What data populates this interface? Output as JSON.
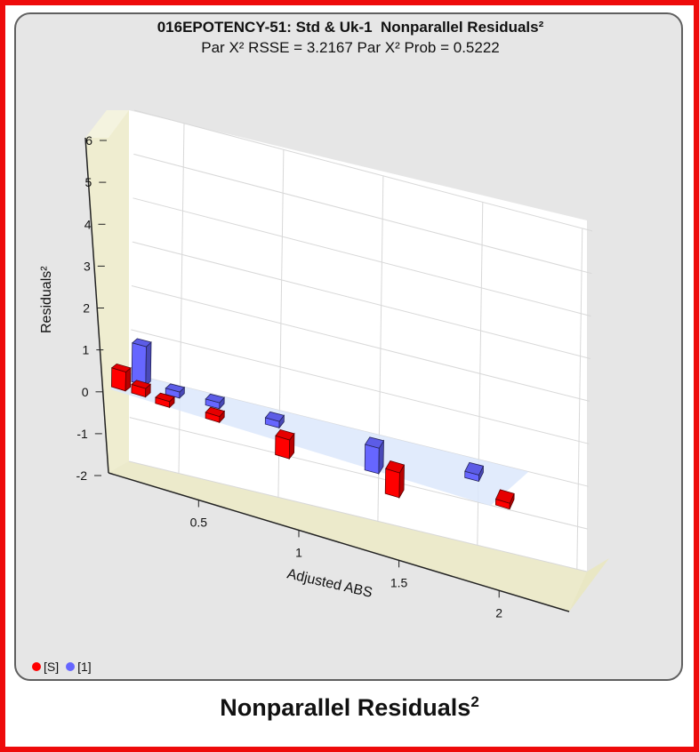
{
  "caption": {
    "text": "Nonparallel Residuals",
    "sup": "2"
  },
  "chart_data": {
    "type": "bar",
    "render": "3d",
    "title": "016EPOTENCY-51: Std & Uk-1  Nonparallel Residuals²",
    "subtitle": "Par X² RSSE = 3.2167 Par X² Prob = 0.5222",
    "xlabel": "Adjusted ABS",
    "ylabel": "Residuals²",
    "x_ticks": [
      "0.5",
      "1",
      "1.5",
      "2"
    ],
    "x_tick_values": [
      0.5,
      1,
      1.5,
      2
    ],
    "y_ticks": [
      "-2",
      "-1",
      "0",
      "1",
      "2",
      "3",
      "4",
      "5",
      "6"
    ],
    "y_tick_values": [
      -2,
      -1,
      0,
      1,
      2,
      3,
      4,
      5,
      6
    ],
    "xlim": [
      0.05,
      2.35
    ],
    "ylim": [
      -2,
      6
    ],
    "grid": true,
    "legend_position": "bottom-left",
    "series": [
      {
        "name": "[S]",
        "color": "#ff0000",
        "depth": 0,
        "points": [
          [
            0.08,
            0.45
          ],
          [
            0.18,
            0.2
          ],
          [
            0.3,
            -0.1
          ],
          [
            0.55,
            -0.1
          ],
          [
            0.9,
            -0.45
          ],
          [
            1.45,
            -0.6
          ],
          [
            2.0,
            -0.05
          ]
        ]
      },
      {
        "name": "[1]",
        "color": "#6666ff",
        "depth": 1,
        "points": [
          [
            0.13,
            0.9
          ],
          [
            0.3,
            -0.04
          ],
          [
            0.5,
            -0.05
          ],
          [
            0.8,
            -0.15
          ],
          [
            1.3,
            -0.6
          ],
          [
            1.8,
            -0.15
          ]
        ]
      }
    ]
  }
}
